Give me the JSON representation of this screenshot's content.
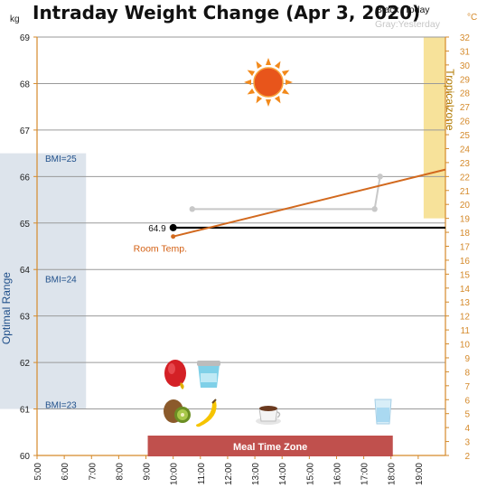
{
  "chart_data": {
    "type": "line",
    "title": "Intraday Weight Change (Apr 3, 2020)",
    "left_axis": {
      "unit": "kg",
      "range": [
        60,
        69
      ],
      "ticks": [
        60,
        61,
        62,
        63,
        64,
        65,
        66,
        67,
        68,
        69
      ]
    },
    "right_axis": {
      "unit": "°C",
      "range": [
        2,
        32
      ],
      "ticks": [
        2,
        3,
        4,
        5,
        6,
        7,
        8,
        9,
        10,
        11,
        12,
        13,
        14,
        15,
        16,
        17,
        18,
        19,
        20,
        21,
        22,
        23,
        24,
        25,
        26,
        27,
        28,
        29,
        30,
        31,
        32
      ]
    },
    "x_axis": {
      "range_hours": [
        5,
        20
      ],
      "ticks": [
        {
          "hour": 5,
          "label": "5:00"
        },
        {
          "hour": 6,
          "label": "6:00"
        },
        {
          "hour": 7,
          "label": "7:00"
        },
        {
          "hour": 8,
          "label": "8:00"
        },
        {
          "hour": 9,
          "label": "9:00"
        },
        {
          "hour": 10,
          "label": "10:00"
        },
        {
          "hour": 11,
          "label": "11:00"
        },
        {
          "hour": 12,
          "label": "12:00"
        },
        {
          "hour": 13,
          "label": "13:00"
        },
        {
          "hour": 14,
          "label": "14:00"
        },
        {
          "hour": 15,
          "label": "15:00"
        },
        {
          "hour": 16,
          "label": "16:00"
        },
        {
          "hour": 17,
          "label": "17:00"
        },
        {
          "hour": 18,
          "label": "18:00"
        },
        {
          "hour": 19,
          "label": "19:00"
        }
      ]
    },
    "legend": {
      "today": "Black :Today",
      "yesterday": "Gray:Yesterday"
    },
    "series": [
      {
        "name": "Today",
        "axis": "left",
        "color": "#000000",
        "points": [
          [
            10.0,
            64.9
          ]
        ],
        "reference_line": 64.9,
        "value_label": "64.9"
      },
      {
        "name": "Yesterday",
        "axis": "left",
        "color": "#c8c8c8",
        "points": [
          [
            10.7,
            65.3
          ],
          [
            17.4,
            65.3
          ],
          [
            17.6,
            66.0
          ]
        ]
      },
      {
        "name": "Room Temp.",
        "axis": "right",
        "color": "#d2691e",
        "points": [
          [
            10.0,
            17.7
          ],
          [
            20.0,
            22.5
          ]
        ],
        "label": "Room Temp."
      }
    ],
    "bands": {
      "optimal_range": {
        "label": "Optimal Range",
        "kg_range": [
          61,
          66.5
        ],
        "color": "#dde4ec"
      },
      "tropical_zone": {
        "label": "Tropicalzone",
        "celsius_range": [
          19,
          32
        ],
        "color": "#f7e29a"
      },
      "meal_time_zone": {
        "label": "Meal Time Zone",
        "hour_range": [
          9,
          18
        ],
        "color": "#c0504d"
      }
    },
    "bmi_labels": [
      {
        "text": "BMI=25",
        "kg": 66.4
      },
      {
        "text": "BMI=24",
        "kg": 63.8
      },
      {
        "text": "BMI=23",
        "kg": 61.1
      }
    ],
    "icons": [
      "sun-icon",
      "mango-icon",
      "yogurt-cup-icon",
      "kiwi-icon",
      "banana-icon",
      "coffee-cup-icon",
      "water-glass-icon"
    ],
    "grid": true
  }
}
